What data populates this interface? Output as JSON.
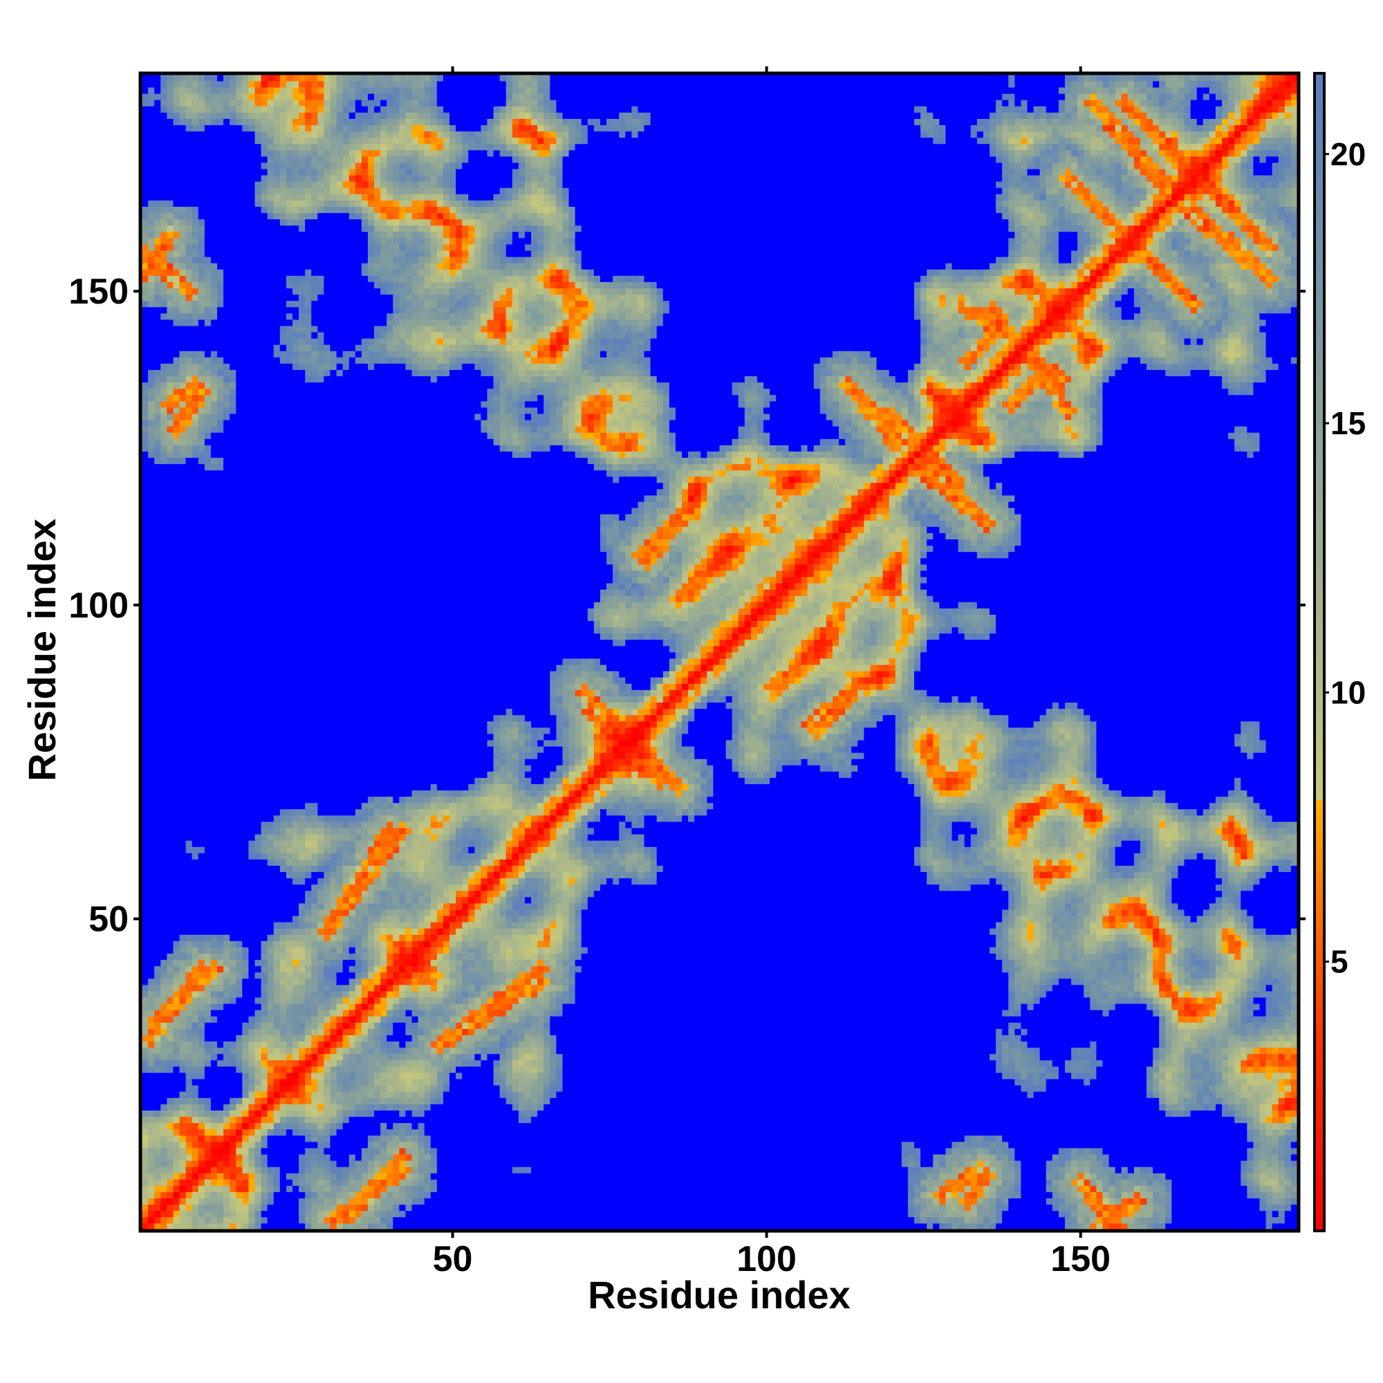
{
  "chart_data": {
    "type": "heatmap",
    "description_kind": "residue-residue distance map",
    "xlabel": "Residue index",
    "ylabel": "Residue index",
    "n_residues": 184,
    "xlim": [
      1,
      184
    ],
    "ylim": [
      1,
      184
    ],
    "xticks": [
      50,
      100,
      150
    ],
    "yticks": [
      50,
      100,
      150
    ],
    "colorbar": {
      "range": [
        0,
        21.5
      ],
      "ticks": [
        5,
        10,
        15,
        20
      ],
      "stops": [
        {
          "value": 0,
          "color": "#ff0000"
        },
        {
          "value": 3.5,
          "color": "#ff3000"
        },
        {
          "value": 6.5,
          "color": "#ff8000"
        },
        {
          "value": 8.0,
          "color": "#ffb000"
        },
        {
          "value": 8.01,
          "color": "#c8c87a"
        },
        {
          "value": 11.0,
          "color": "#aab78c"
        },
        {
          "value": 15.0,
          "color": "#8aa29a"
        },
        {
          "value": 19.0,
          "color": "#6c8cae"
        },
        {
          "value": 21.5,
          "color": "#5a7ec0"
        }
      ],
      "out_of_range_color": "#0000ff"
    },
    "grid": false,
    "legend": "colorbar-right",
    "main_diagonal_distance": 0,
    "contact_features": [
      {
        "kind": "anti-diagonal",
        "from": [
          71,
          86
        ],
        "to": [
          83,
          72
        ]
      },
      {
        "kind": "anti-diagonal",
        "from": [
          152,
          180
        ],
        "to": [
          170,
          160
        ]
      },
      {
        "kind": "anti-diagonal",
        "from": [
          157,
          180
        ],
        "to": [
          180,
          157
        ]
      },
      {
        "kind": "anti-diagonal",
        "from": [
          148,
          168
        ],
        "to": [
          168,
          148
        ]
      },
      {
        "kind": "anti-diagonal",
        "from": [
          113,
          135
        ],
        "to": [
          126,
          120
        ]
      },
      {
        "kind": "anti-diagonal",
        "from": [
          120,
          130
        ],
        "to": [
          133,
          115
        ]
      },
      {
        "kind": "anti-diagonal",
        "from": [
          131,
          148
        ],
        "to": [
          147,
          136
        ]
      },
      {
        "kind": "anti-diagonal",
        "from": [
          1,
          156
        ],
        "to": [
          8,
          150
        ]
      },
      {
        "kind": "parallel",
        "from": [
          3,
          34
        ],
        "to": [
          12,
          42
        ]
      },
      {
        "kind": "parallel",
        "from": [
          30,
          48
        ],
        "to": [
          40,
          64
        ]
      },
      {
        "kind": "parallel",
        "from": [
          52,
          33
        ],
        "to": [
          64,
          42
        ]
      },
      {
        "kind": "parallel",
        "from": [
          80,
          108
        ],
        "to": [
          87,
          115
        ]
      },
      {
        "kind": "parallel",
        "from": [
          107,
          81
        ],
        "to": [
          116,
          88
        ]
      },
      {
        "kind": "parallel",
        "from": [
          31,
          2
        ],
        "to": [
          42,
          10
        ]
      },
      {
        "kind": "parallel",
        "from": [
          153,
          1
        ],
        "to": [
          159,
          5
        ]
      },
      {
        "kind": "parallel",
        "from": [
          132,
          5
        ],
        "to": [
          135,
          9
        ]
      },
      {
        "kind": "parallel",
        "from": [
          6,
          128
        ],
        "to": [
          10,
          134
        ]
      },
      {
        "kind": "parallel",
        "from": [
          139,
          132
        ],
        "to": [
          144,
          137
        ]
      }
    ]
  }
}
